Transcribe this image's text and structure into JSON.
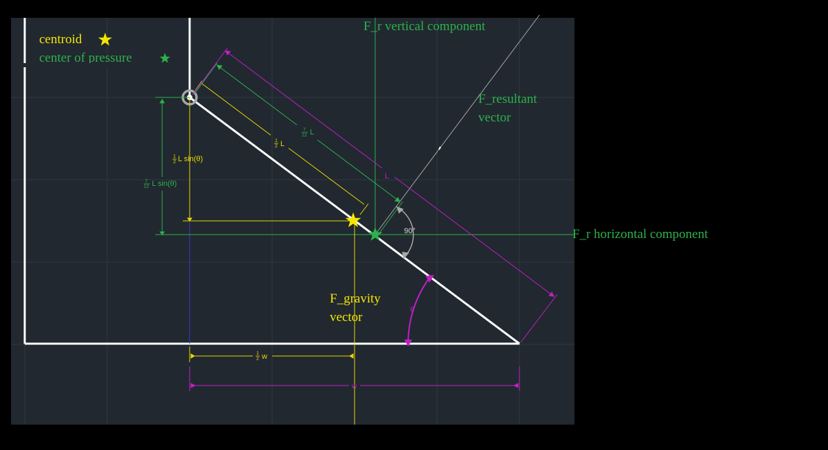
{
  "colors": {
    "page_background": "#000000",
    "canvas_background": "#212830",
    "grid": "#2f3842",
    "gate": "#ffffff",
    "yellow": "#e8d800",
    "green": "#2db24a",
    "magenta": "#c21ec6",
    "gray": "#a8a8a8",
    "blue": "#3a3acc"
  },
  "icons": {
    "centroid_marker": "yellow-star",
    "center_of_pressure_marker": "green-star",
    "hinge": "hinge-circle"
  },
  "legend": {
    "centroid": "centroid",
    "center_of_pressure": "center of pressure"
  },
  "labels": {
    "fr_vertical": "F_r vertical component",
    "fr_horizontal": "F_r horizontal component",
    "fr_resultant_line1": "F_resultant",
    "fr_resultant_line2": "vector",
    "fgravity_line1": "F_gravity",
    "fgravity_line2": "vector",
    "half_L_sin_suffix": "L sin(θ)",
    "seven_twelfths_L_sin_suffix": "L sin(θ)",
    "half_L_suffix": "L",
    "seven_twelfths_L_suffix": "L",
    "L": "L",
    "right_angle": "90°",
    "theta": "θ",
    "half_w_suffix": "w",
    "w": "w"
  },
  "fractions": {
    "half": {
      "num": "1",
      "den": "2"
    },
    "seven_twelfths": {
      "num": "7",
      "den": "12"
    }
  }
}
